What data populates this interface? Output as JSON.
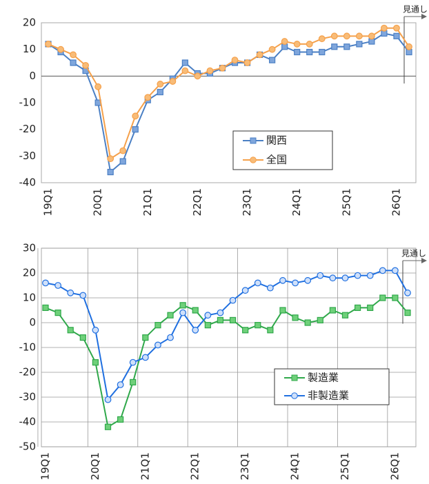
{
  "chart_data": [
    {
      "type": "line",
      "annotation": "見通し",
      "categories": [
        "19Q1",
        null,
        null,
        null,
        "20Q1",
        null,
        null,
        null,
        "21Q1",
        null,
        null,
        null,
        "22Q1",
        null,
        null,
        null,
        "23Q1",
        null,
        null,
        null,
        "24Q1",
        null,
        null,
        null,
        "25Q1",
        null,
        null,
        null,
        "26Q1",
        null
      ],
      "ylim": [
        -40,
        20
      ],
      "yticks": [
        -40,
        -30,
        -20,
        -10,
        0,
        10,
        20
      ],
      "grid": false,
      "xgrid": false,
      "legend": "lower right",
      "series": [
        {
          "name": "関西",
          "color": "#4a7fc4",
          "fill": "#7fa6dc",
          "marker": "square",
          "values": [
            12,
            9,
            5,
            2,
            -10,
            -36,
            -32,
            -20,
            -9,
            -6,
            -1,
            5,
            1,
            1,
            3,
            5,
            5,
            8,
            6,
            11,
            9,
            9,
            9,
            11,
            11,
            12,
            13,
            16,
            15,
            9
          ]
        },
        {
          "name": "全国",
          "color": "#f5a04a",
          "fill": "#f8bc78",
          "marker": "circle",
          "values": [
            12,
            10,
            8,
            4,
            -4,
            -31,
            -28,
            -15,
            -8,
            -3,
            -2,
            2,
            0,
            2,
            3,
            6,
            5,
            8,
            10,
            13,
            12,
            12,
            14,
            15,
            15,
            15,
            15,
            18,
            18,
            11
          ]
        }
      ]
    },
    {
      "type": "line",
      "annotation": "見通し",
      "categories": [
        "19Q1",
        null,
        null,
        null,
        "20Q1",
        null,
        null,
        null,
        "21Q1",
        null,
        null,
        null,
        "22Q1",
        null,
        null,
        null,
        "23Q1",
        null,
        null,
        null,
        "24Q1",
        null,
        null,
        null,
        "25Q1",
        null,
        null,
        null,
        "26Q1",
        null
      ],
      "ylim": [
        -50,
        30
      ],
      "yticks": [
        -50,
        -40,
        -30,
        -20,
        -10,
        0,
        10,
        20,
        30
      ],
      "grid": true,
      "xgrid": true,
      "legend": "lower right",
      "series": [
        {
          "name": "製造業",
          "color": "#2fa84a",
          "fill": "#6fd07a",
          "marker": "square",
          "values": [
            6,
            4,
            -3,
            -6,
            -16,
            -42,
            -39,
            -24,
            -6,
            -1,
            3,
            7,
            5,
            -1,
            1,
            1,
            -3,
            -1,
            -3,
            5,
            2,
            0,
            1,
            5,
            3,
            6,
            6,
            10,
            10,
            4
          ]
        },
        {
          "name": "非製造業",
          "color": "#1f6fe0",
          "fill": "#cfe0fa",
          "marker": "circle",
          "values": [
            16,
            15,
            12,
            11,
            -3,
            -31,
            -25,
            -16,
            -14,
            -9,
            -6,
            4,
            -3,
            3,
            4,
            9,
            13,
            16,
            14,
            17,
            16,
            17,
            19,
            18,
            18,
            19,
            19,
            21,
            21,
            12
          ]
        }
      ]
    }
  ]
}
